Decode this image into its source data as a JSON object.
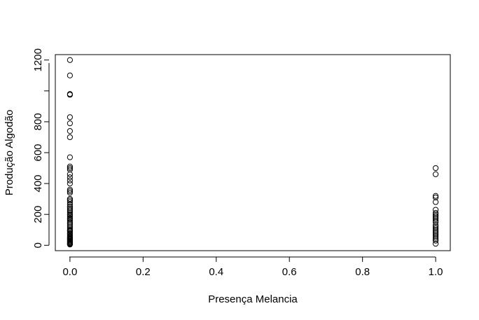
{
  "chart_data": {
    "type": "scatter",
    "title": "",
    "xlabel": "Presença Melancia",
    "ylabel": "Produção Algodão",
    "xlim": [
      -0.04,
      1.04
    ],
    "ylim": [
      -35,
      1235
    ],
    "x_ticks": [
      "0.0",
      "0.2",
      "0.4",
      "0.6",
      "0.8",
      "1.0"
    ],
    "x_tick_values": [
      0,
      0.2,
      0.4,
      0.6,
      0.8,
      1.0
    ],
    "y_ticks": [
      "0",
      "200",
      "400",
      "600",
      "800",
      "1200"
    ],
    "y_tick_values": [
      0,
      200,
      400,
      600,
      800,
      1000,
      1200
    ],
    "y_tick_labeled": [
      true,
      true,
      true,
      true,
      true,
      false,
      true
    ],
    "grid": false,
    "marker": "open-circle",
    "x": [
      0,
      0,
      0,
      0,
      0,
      0,
      0,
      0,
      0,
      0,
      0,
      0,
      0,
      0,
      0,
      0,
      0,
      0,
      0,
      0,
      0,
      0,
      0,
      0,
      0,
      0,
      0,
      0,
      0,
      0,
      0,
      0,
      0,
      0,
      0,
      0,
      0,
      0,
      0,
      0,
      0,
      0,
      0,
      0,
      0,
      0,
      0,
      0,
      0,
      0,
      0,
      0,
      0,
      0,
      0,
      0,
      0,
      0,
      0,
      0,
      1,
      1,
      1,
      1,
      1,
      1,
      1,
      1,
      1,
      1,
      1,
      1,
      1,
      1,
      1,
      1,
      1,
      1,
      1,
      1,
      1,
      1,
      1,
      1,
      1
    ],
    "y": [
      1200,
      1100,
      980,
      975,
      830,
      790,
      740,
      700,
      570,
      510,
      500,
      490,
      460,
      440,
      420,
      400,
      360,
      350,
      340,
      300,
      290,
      280,
      265,
      250,
      240,
      230,
      220,
      210,
      200,
      195,
      185,
      175,
      170,
      160,
      150,
      140,
      130,
      120,
      110,
      100,
      95,
      90,
      80,
      75,
      70,
      60,
      55,
      50,
      45,
      40,
      35,
      30,
      25,
      20,
      15,
      10,
      8,
      5,
      300,
      250,
      500,
      460,
      320,
      310,
      280,
      230,
      210,
      200,
      190,
      180,
      170,
      160,
      150,
      130,
      120,
      110,
      100,
      90,
      80,
      70,
      60,
      50,
      40,
      30,
      10
    ]
  }
}
